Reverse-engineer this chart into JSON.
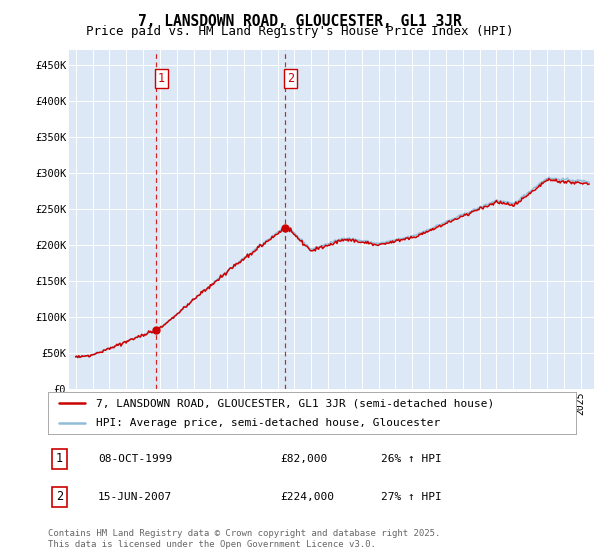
{
  "title": "7, LANSDOWN ROAD, GLOUCESTER, GL1 3JR",
  "subtitle": "Price paid vs. HM Land Registry's House Price Index (HPI)",
  "background_color": "#ffffff",
  "plot_bg_color": "#dce8f5",
  "grid_color": "#ffffff",
  "red_color": "#cc0000",
  "blue_color": "#90bcd8",
  "vline_color": "#cc0000",
  "ylim": [
    0,
    470000
  ],
  "yticks": [
    0,
    50000,
    100000,
    150000,
    200000,
    250000,
    300000,
    350000,
    400000,
    450000
  ],
  "ytick_labels": [
    "£0",
    "£50K",
    "£100K",
    "£150K",
    "£200K",
    "£250K",
    "£300K",
    "£350K",
    "£400K",
    "£450K"
  ],
  "sale1_year": 1999.77,
  "sale1_price": 82000,
  "sale2_year": 2007.46,
  "sale2_price": 224000,
  "xlim_left": 1994.6,
  "xlim_right": 2025.8,
  "legend_entries": [
    "7, LANSDOWN ROAD, GLOUCESTER, GL1 3JR (semi-detached house)",
    "HPI: Average price, semi-detached house, Gloucester"
  ],
  "table_rows": [
    [
      "1",
      "08-OCT-1999",
      "£82,000",
      "26% ↑ HPI"
    ],
    [
      "2",
      "15-JUN-2007",
      "£224,000",
      "27% ↑ HPI"
    ]
  ],
  "footer": "Contains HM Land Registry data © Crown copyright and database right 2025.\nThis data is licensed under the Open Government Licence v3.0.",
  "title_fontsize": 10.5,
  "subtitle_fontsize": 9,
  "tick_fontsize": 7.5,
  "legend_fontsize": 8,
  "table_fontsize": 8,
  "footer_fontsize": 6.5
}
